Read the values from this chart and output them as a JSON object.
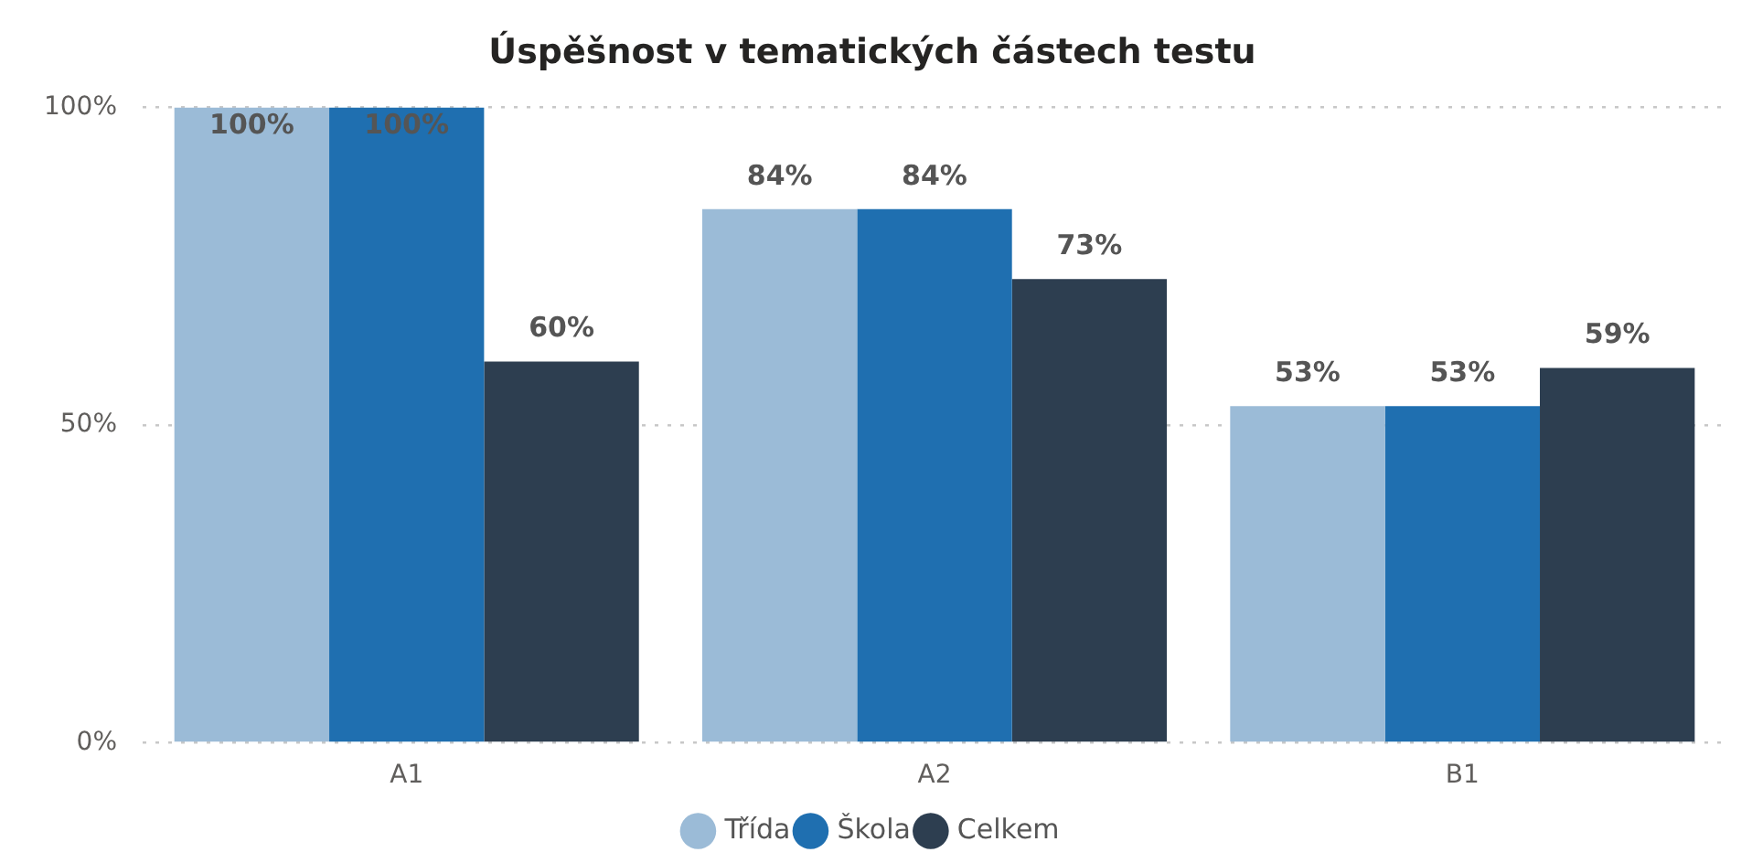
{
  "chart_data": {
    "type": "bar",
    "title": "Úspěšnost v tematických částech testu",
    "categories": [
      "A1",
      "A2",
      "B1"
    ],
    "series": [
      {
        "name": "Třída",
        "color": "#9bbbd7",
        "values": [
          100,
          84,
          53
        ],
        "value_labels": [
          "100%",
          "84%",
          "53%"
        ]
      },
      {
        "name": "Škola",
        "color": "#1f6fb0",
        "values": [
          100,
          84,
          53
        ],
        "value_labels": [
          "100%",
          "84%",
          "53%"
        ]
      },
      {
        "name": "Celkem",
        "color": "#2d3e50",
        "values": [
          60,
          73,
          59
        ],
        "value_labels": [
          "60%",
          "73%",
          "59%"
        ]
      }
    ],
    "ylim": [
      0,
      100
    ],
    "yticks": [
      {
        "value": 0,
        "label": "0%"
      },
      {
        "value": 50,
        "label": "50%"
      },
      {
        "value": 100,
        "label": "100%"
      }
    ],
    "grid": "y",
    "legend": "bottom"
  }
}
